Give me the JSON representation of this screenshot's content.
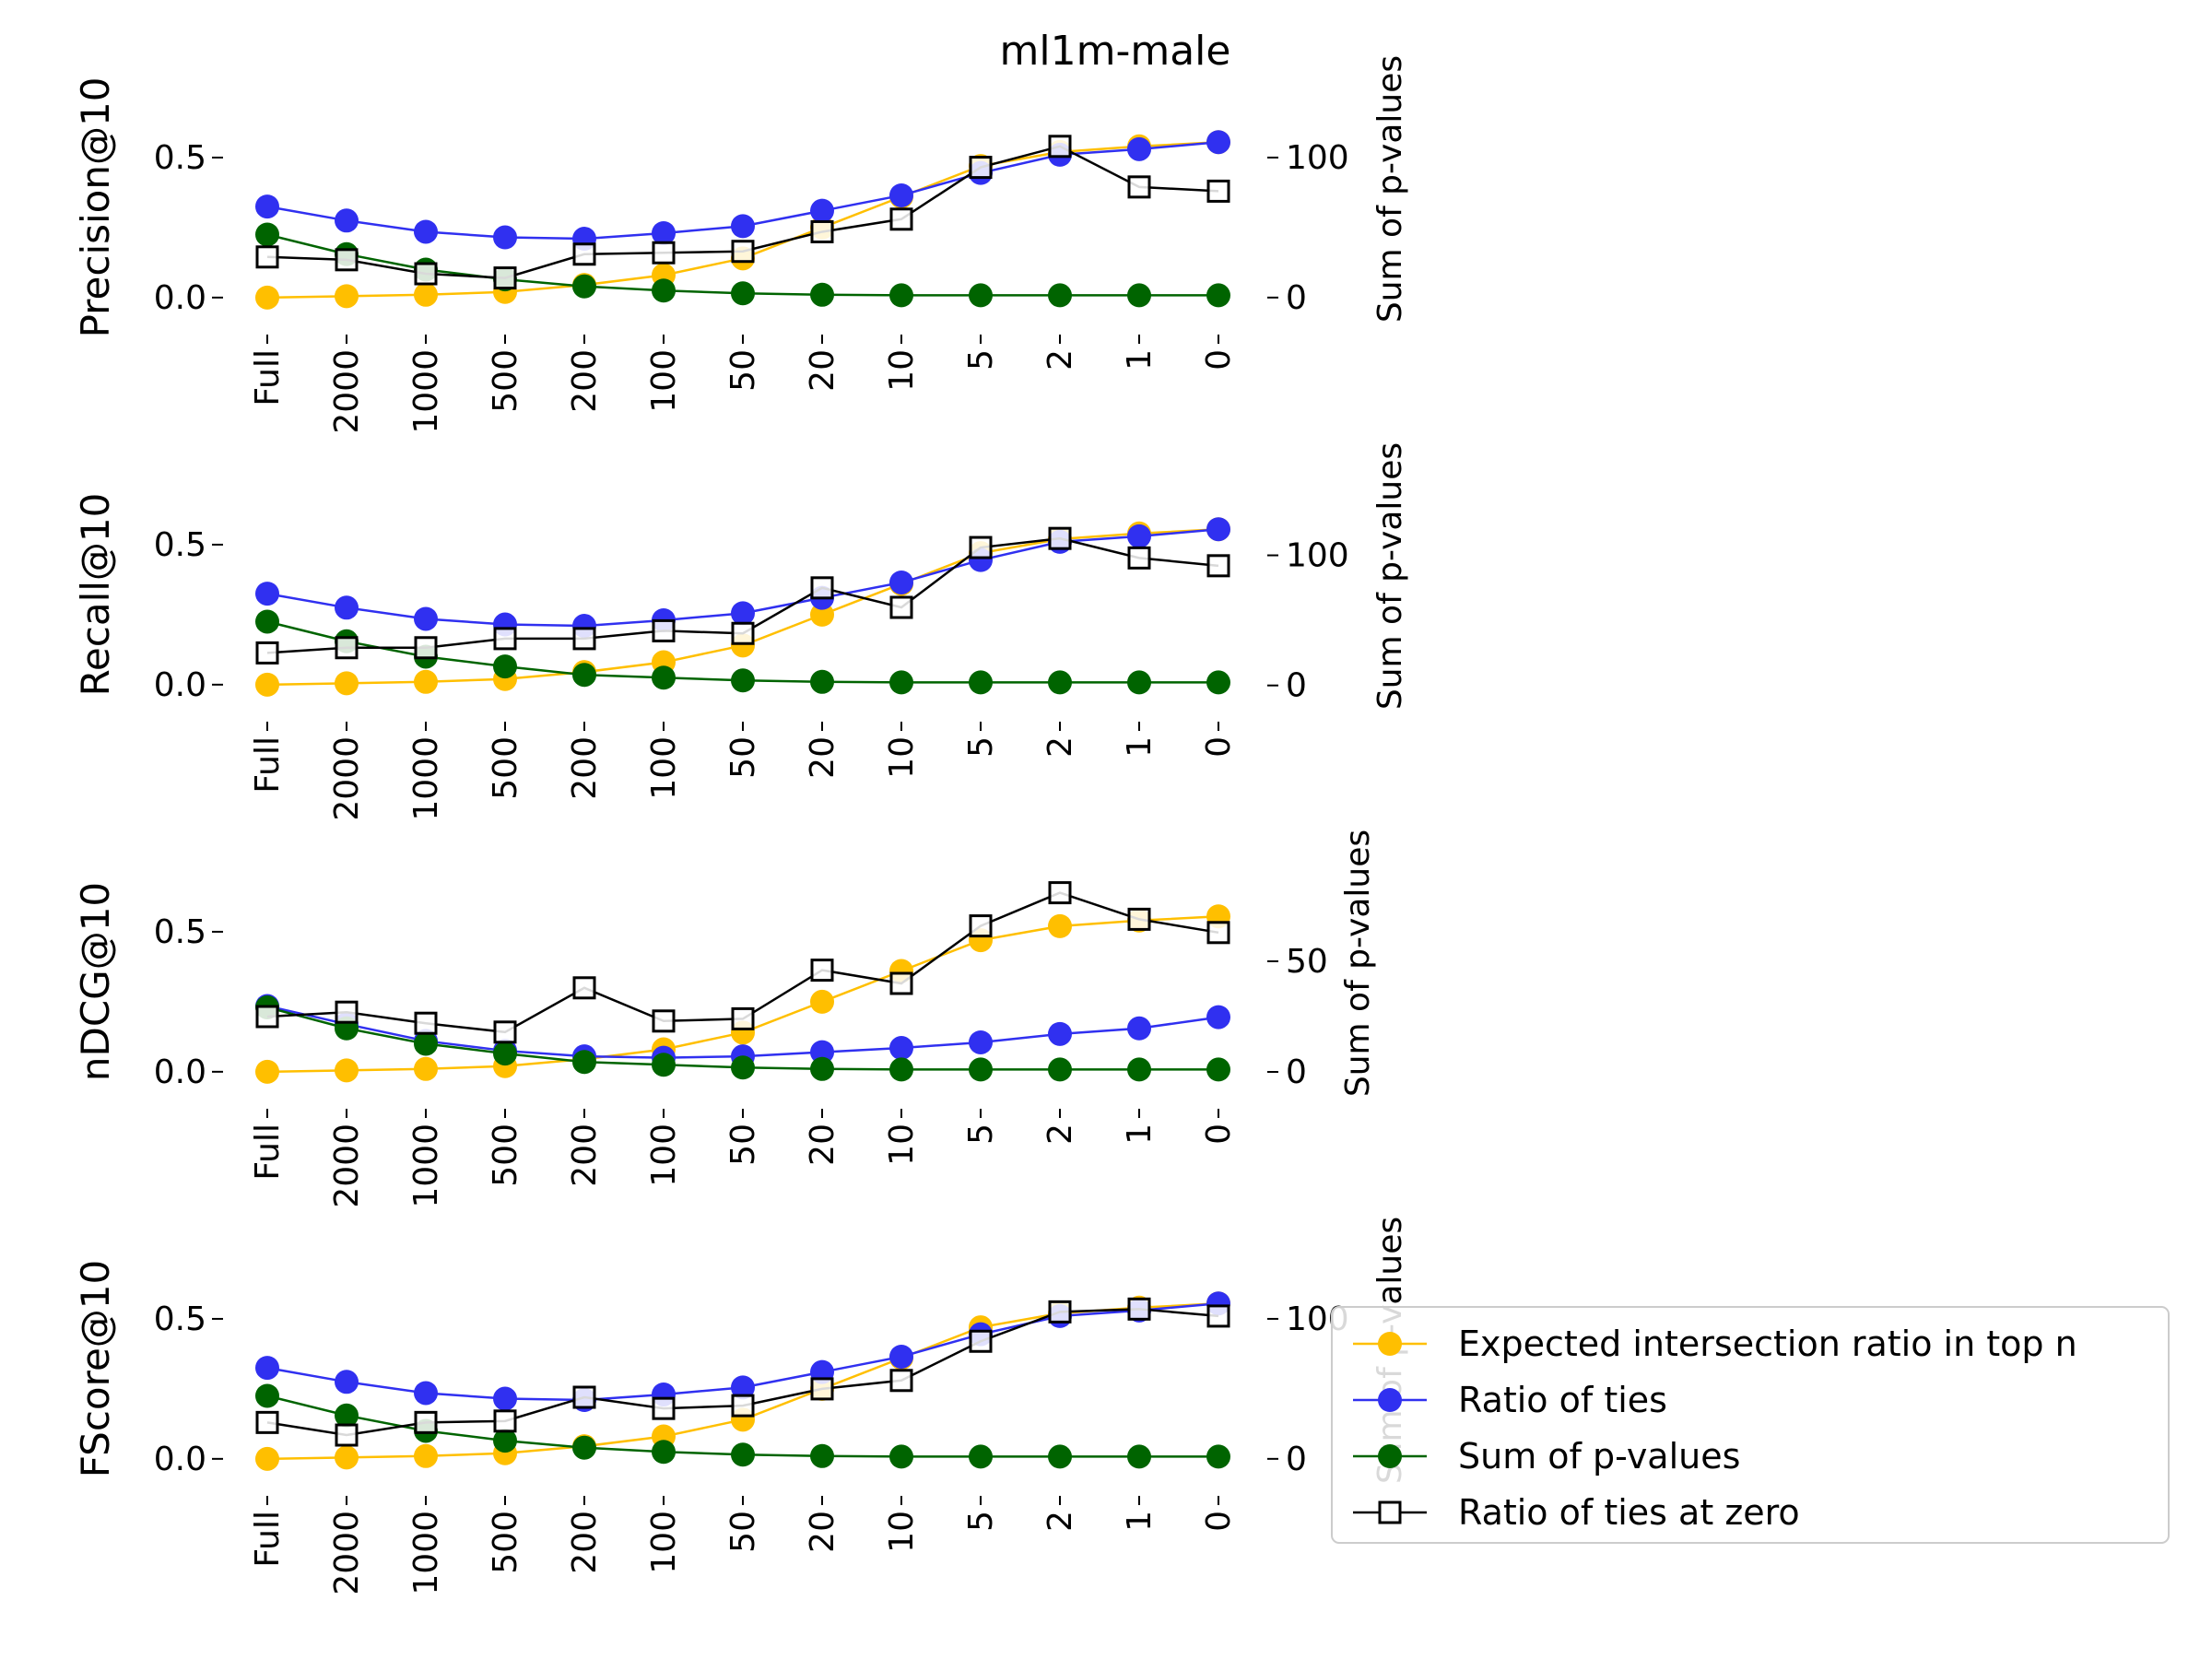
{
  "title": "ml1m-male",
  "colors": {
    "expected": "#ffbf00",
    "ties": "#3030f0",
    "pvalues": "#006400",
    "zero": "#000000"
  },
  "legend": {
    "items": [
      {
        "label": "Expected intersection ratio in top n",
        "color": "#ffbf00",
        "marker": "circle"
      },
      {
        "label": "Ratio of ties",
        "color": "#3030f0",
        "marker": "circle"
      },
      {
        "label": "Sum of p-values",
        "color": "#006400",
        "marker": "circle"
      },
      {
        "label": "Ratio of ties at zero",
        "color": "#000000",
        "marker": "square"
      }
    ]
  },
  "chart_data": [
    {
      "type": "line",
      "ylabel": "Precision@10",
      "y2label": "Sum of p-values",
      "categories": [
        "Full",
        "2000",
        "1000",
        "500",
        "200",
        "100",
        "50",
        "20",
        "10",
        "5",
        "2",
        "1",
        "0"
      ],
      "ylim": [
        -0.04,
        0.75
      ],
      "yticks": [
        0.0,
        0.5
      ],
      "y2lim": [
        -8,
        150
      ],
      "y2ticks": [
        0,
        100
      ],
      "series": [
        {
          "name": "Expected intersection ratio in top n",
          "axis": "left",
          "values": [
            0.0,
            0.005,
            0.01,
            0.02,
            0.045,
            0.08,
            0.14,
            0.25,
            0.36,
            0.47,
            0.52,
            0.54,
            0.555
          ]
        },
        {
          "name": "Ratio of ties",
          "axis": "left",
          "values": [
            0.325,
            0.275,
            0.235,
            0.215,
            0.21,
            0.23,
            0.255,
            0.31,
            0.365,
            0.445,
            0.51,
            0.53,
            0.555
          ]
        },
        {
          "name": "Sum of p-values",
          "axis": "left",
          "values": [
            0.225,
            0.155,
            0.1,
            0.065,
            0.04,
            0.025,
            0.015,
            0.01,
            0.008,
            0.008,
            0.008,
            0.008,
            0.008
          ]
        },
        {
          "name": "Ratio of ties at zero",
          "axis": "right",
          "values": [
            29,
            27,
            17,
            14,
            31,
            32,
            33,
            47,
            56,
            93,
            108,
            79,
            76
          ]
        }
      ]
    },
    {
      "type": "line",
      "ylabel": "Recall@10",
      "y2label": "Sum of p-values",
      "categories": [
        "Full",
        "2000",
        "1000",
        "500",
        "200",
        "100",
        "50",
        "20",
        "10",
        "5",
        "2",
        "1",
        "0"
      ],
      "ylim": [
        -0.04,
        0.75
      ],
      "yticks": [
        0.0,
        0.5
      ],
      "y2lim": [
        -8,
        162
      ],
      "y2ticks": [
        0,
        100
      ],
      "series": [
        {
          "name": "Expected intersection ratio in top n",
          "axis": "left",
          "values": [
            0.0,
            0.005,
            0.01,
            0.02,
            0.045,
            0.08,
            0.14,
            0.25,
            0.36,
            0.47,
            0.52,
            0.54,
            0.555
          ]
        },
        {
          "name": "Ratio of ties",
          "axis": "left",
          "values": [
            0.325,
            0.275,
            0.235,
            0.215,
            0.21,
            0.23,
            0.255,
            0.31,
            0.365,
            0.445,
            0.51,
            0.53,
            0.555
          ]
        },
        {
          "name": "Sum of p-values",
          "axis": "left",
          "values": [
            0.225,
            0.155,
            0.1,
            0.065,
            0.035,
            0.025,
            0.015,
            0.01,
            0.008,
            0.008,
            0.008,
            0.008,
            0.008
          ]
        },
        {
          "name": "Ratio of ties at zero",
          "axis": "right",
          "values": [
            25,
            29,
            29,
            36,
            36,
            42,
            40,
            75,
            60,
            106,
            113,
            98,
            92
          ]
        }
      ]
    },
    {
      "type": "line",
      "ylabel": "nDCG@10",
      "y2label": "Sum of p-values",
      "categories": [
        "Full",
        "2000",
        "1000",
        "500",
        "200",
        "100",
        "50",
        "20",
        "10",
        "5",
        "2",
        "1",
        "0"
      ],
      "ylim": [
        -0.04,
        0.75
      ],
      "yticks": [
        0.0,
        0.5
      ],
      "y2lim": [
        -5,
        95
      ],
      "y2ticks": [
        0,
        50
      ],
      "series": [
        {
          "name": "Expected intersection ratio in top n",
          "axis": "left",
          "values": [
            0.0,
            0.005,
            0.01,
            0.02,
            0.045,
            0.08,
            0.14,
            0.25,
            0.36,
            0.47,
            0.52,
            0.54,
            0.555
          ]
        },
        {
          "name": "Ratio of ties",
          "axis": "left",
          "values": [
            0.235,
            0.17,
            0.11,
            0.075,
            0.055,
            0.05,
            0.055,
            0.07,
            0.085,
            0.105,
            0.135,
            0.155,
            0.195
          ]
        },
        {
          "name": "Sum of p-values",
          "axis": "left",
          "values": [
            0.23,
            0.155,
            0.1,
            0.065,
            0.035,
            0.025,
            0.015,
            0.01,
            0.008,
            0.008,
            0.008,
            0.008,
            0.008
          ]
        },
        {
          "name": "Ratio of ties at zero",
          "axis": "right",
          "values": [
            25,
            27,
            22,
            18,
            38,
            23,
            24,
            46,
            40,
            66,
            81,
            69,
            63
          ]
        }
      ]
    },
    {
      "type": "line",
      "ylabel": "FScore@10",
      "y2label": "Sum of p-values",
      "categories": [
        "Full",
        "2000",
        "1000",
        "500",
        "200",
        "100",
        "50",
        "20",
        "10",
        "5",
        "2",
        "1",
        "0"
      ],
      "ylim": [
        -0.04,
        0.75
      ],
      "yticks": [
        0.0,
        0.5
      ],
      "y2lim": [
        -8,
        150
      ],
      "y2ticks": [
        0,
        100
      ],
      "series": [
        {
          "name": "Expected intersection ratio in top n",
          "axis": "left",
          "values": [
            0.0,
            0.005,
            0.01,
            0.02,
            0.045,
            0.08,
            0.14,
            0.25,
            0.36,
            0.47,
            0.52,
            0.54,
            0.555
          ]
        },
        {
          "name": "Ratio of ties",
          "axis": "left",
          "values": [
            0.325,
            0.275,
            0.235,
            0.215,
            0.21,
            0.23,
            0.255,
            0.31,
            0.365,
            0.445,
            0.51,
            0.53,
            0.555
          ]
        },
        {
          "name": "Sum of p-values",
          "axis": "left",
          "values": [
            0.225,
            0.155,
            0.1,
            0.065,
            0.04,
            0.025,
            0.015,
            0.01,
            0.008,
            0.008,
            0.008,
            0.008,
            0.008
          ]
        },
        {
          "name": "Ratio of ties at zero",
          "axis": "right",
          "values": [
            26,
            17,
            26,
            27,
            44,
            36,
            38,
            50,
            56,
            84,
            105,
            107,
            102
          ]
        }
      ]
    }
  ]
}
